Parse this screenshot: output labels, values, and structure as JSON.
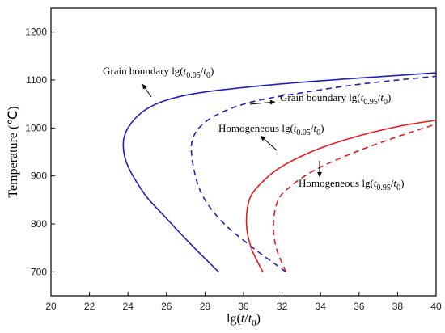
{
  "chart_data": {
    "type": "line",
    "xlabel": "lg(t/t0)",
    "ylabel": "Temperature (℃)",
    "xlim": [
      20,
      40
    ],
    "ylim": [
      650,
      1250
    ],
    "xticks": [
      20,
      22,
      24,
      26,
      28,
      30,
      32,
      34,
      36,
      38,
      40
    ],
    "yticks": [
      700,
      800,
      900,
      1000,
      1100,
      1200
    ],
    "grid": false,
    "series": [
      {
        "name": "Grain boundary lg(t0.05/t0)",
        "color": "#1f1fbf",
        "style": "solid",
        "points": [
          [
            28.7,
            700
          ],
          [
            27.2,
            760
          ],
          [
            25.8,
            820
          ],
          [
            24.9,
            860
          ],
          [
            24.0,
            920
          ],
          [
            23.75,
            965
          ],
          [
            24.0,
            1000
          ],
          [
            24.8,
            1035
          ],
          [
            26.0,
            1058
          ],
          [
            28.0,
            1075
          ],
          [
            32.0,
            1092
          ],
          [
            36.0,
            1104
          ],
          [
            40.0,
            1115
          ]
        ]
      },
      {
        "name": "Grain boundary lg(t0.95/t0)",
        "color": "#1f1fbf",
        "style": "dashed",
        "points": [
          [
            32.2,
            700
          ],
          [
            30.5,
            750
          ],
          [
            29.0,
            800
          ],
          [
            28.0,
            850
          ],
          [
            27.5,
            900
          ],
          [
            27.3,
            965
          ],
          [
            27.8,
            1005
          ],
          [
            29.0,
            1035
          ],
          [
            30.5,
            1055
          ],
          [
            32.5,
            1070
          ],
          [
            36.0,
            1091
          ],
          [
            40.0,
            1108
          ]
        ]
      },
      {
        "name": "Homogeneous lg(t0.05/t0)",
        "color": "#e8191c",
        "style": "solid",
        "points": [
          [
            31.0,
            700
          ],
          [
            30.4,
            750
          ],
          [
            30.15,
            800
          ],
          [
            30.3,
            850
          ],
          [
            30.8,
            880
          ],
          [
            31.8,
            915
          ],
          [
            33.5,
            950
          ],
          [
            35.5,
            978
          ],
          [
            38.0,
            1003
          ],
          [
            40.0,
            1016
          ]
        ]
      },
      {
        "name": "Homogeneous lg(t0.95/t0)",
        "color": "#e8191c",
        "style": "dashed",
        "points": [
          [
            32.2,
            700
          ],
          [
            31.7,
            750
          ],
          [
            31.55,
            800
          ],
          [
            31.8,
            850
          ],
          [
            32.5,
            880
          ],
          [
            33.6,
            910
          ],
          [
            35.2,
            940
          ],
          [
            37.5,
            975
          ],
          [
            40.0,
            1008
          ]
        ]
      }
    ],
    "annotations": [
      {
        "id": "gb005",
        "main": "Grain boundary lg(",
        "sub": "0.05",
        "tail": "/t",
        "sub2": "0",
        "close": ")"
      },
      {
        "id": "gb095",
        "main": "Grain boundary lg(",
        "sub": "0.95",
        "tail": "/t",
        "sub2": "0",
        "close": ")"
      },
      {
        "id": "h005",
        "main": "Homogeneous lg(",
        "sub": "0.05",
        "tail": "/t",
        "sub2": "0",
        "close": ")"
      },
      {
        "id": "h095",
        "main": "Homogeneous lg(",
        "sub": "0.95",
        "tail": "/t",
        "sub2": "0",
        "close": ")"
      }
    ]
  }
}
